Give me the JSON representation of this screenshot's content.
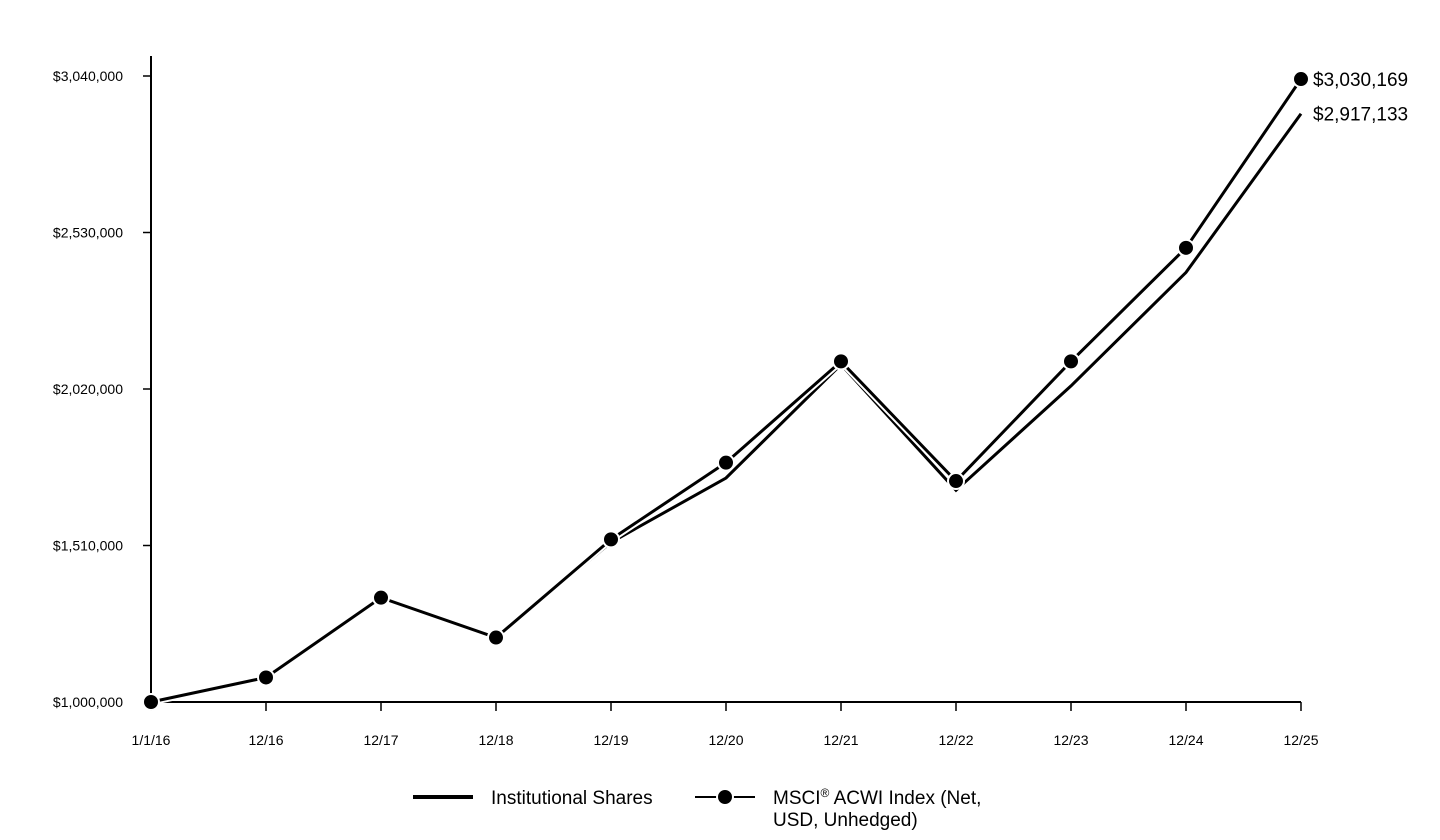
{
  "chart_data": {
    "type": "line",
    "title": "",
    "xlabel": "",
    "ylabel": "",
    "categories": [
      "1/1/16",
      "12/16",
      "12/17",
      "12/18",
      "12/19",
      "12/20",
      "12/21",
      "12/22",
      "12/23",
      "12/24",
      "12/25"
    ],
    "y_ticks": [
      "$1,000,000",
      "$1,510,000",
      "$2,020,000",
      "$2,530,000",
      "$3,040,000"
    ],
    "y_tick_values": [
      1000000,
      1510000,
      2020000,
      2530000,
      3040000
    ],
    "ylim": [
      1000000,
      3100000
    ],
    "grid": false,
    "legend_position": "bottom",
    "series": [
      {
        "name": "Institutional Shares",
        "marker": "none",
        "values": [
          1000000,
          1080000,
          1340000,
          1210000,
          1520000,
          1730000,
          2100000,
          1690000,
          2030000,
          2400000,
          2917133
        ],
        "end_label": "$2,917,133"
      },
      {
        "name_parts": [
          "MSCI",
          "®",
          " ACWI Index (Net,",
          "USD, Unhedged)"
        ],
        "marker": "circle",
        "values": [
          1000000,
          1080000,
          1340000,
          1210000,
          1530000,
          1780000,
          2110000,
          1720000,
          2110000,
          2480000,
          3030169
        ],
        "end_label": "$3,030,169"
      }
    ],
    "colors": {
      "line": "#000000",
      "marker_outline": "#ffffff"
    }
  }
}
